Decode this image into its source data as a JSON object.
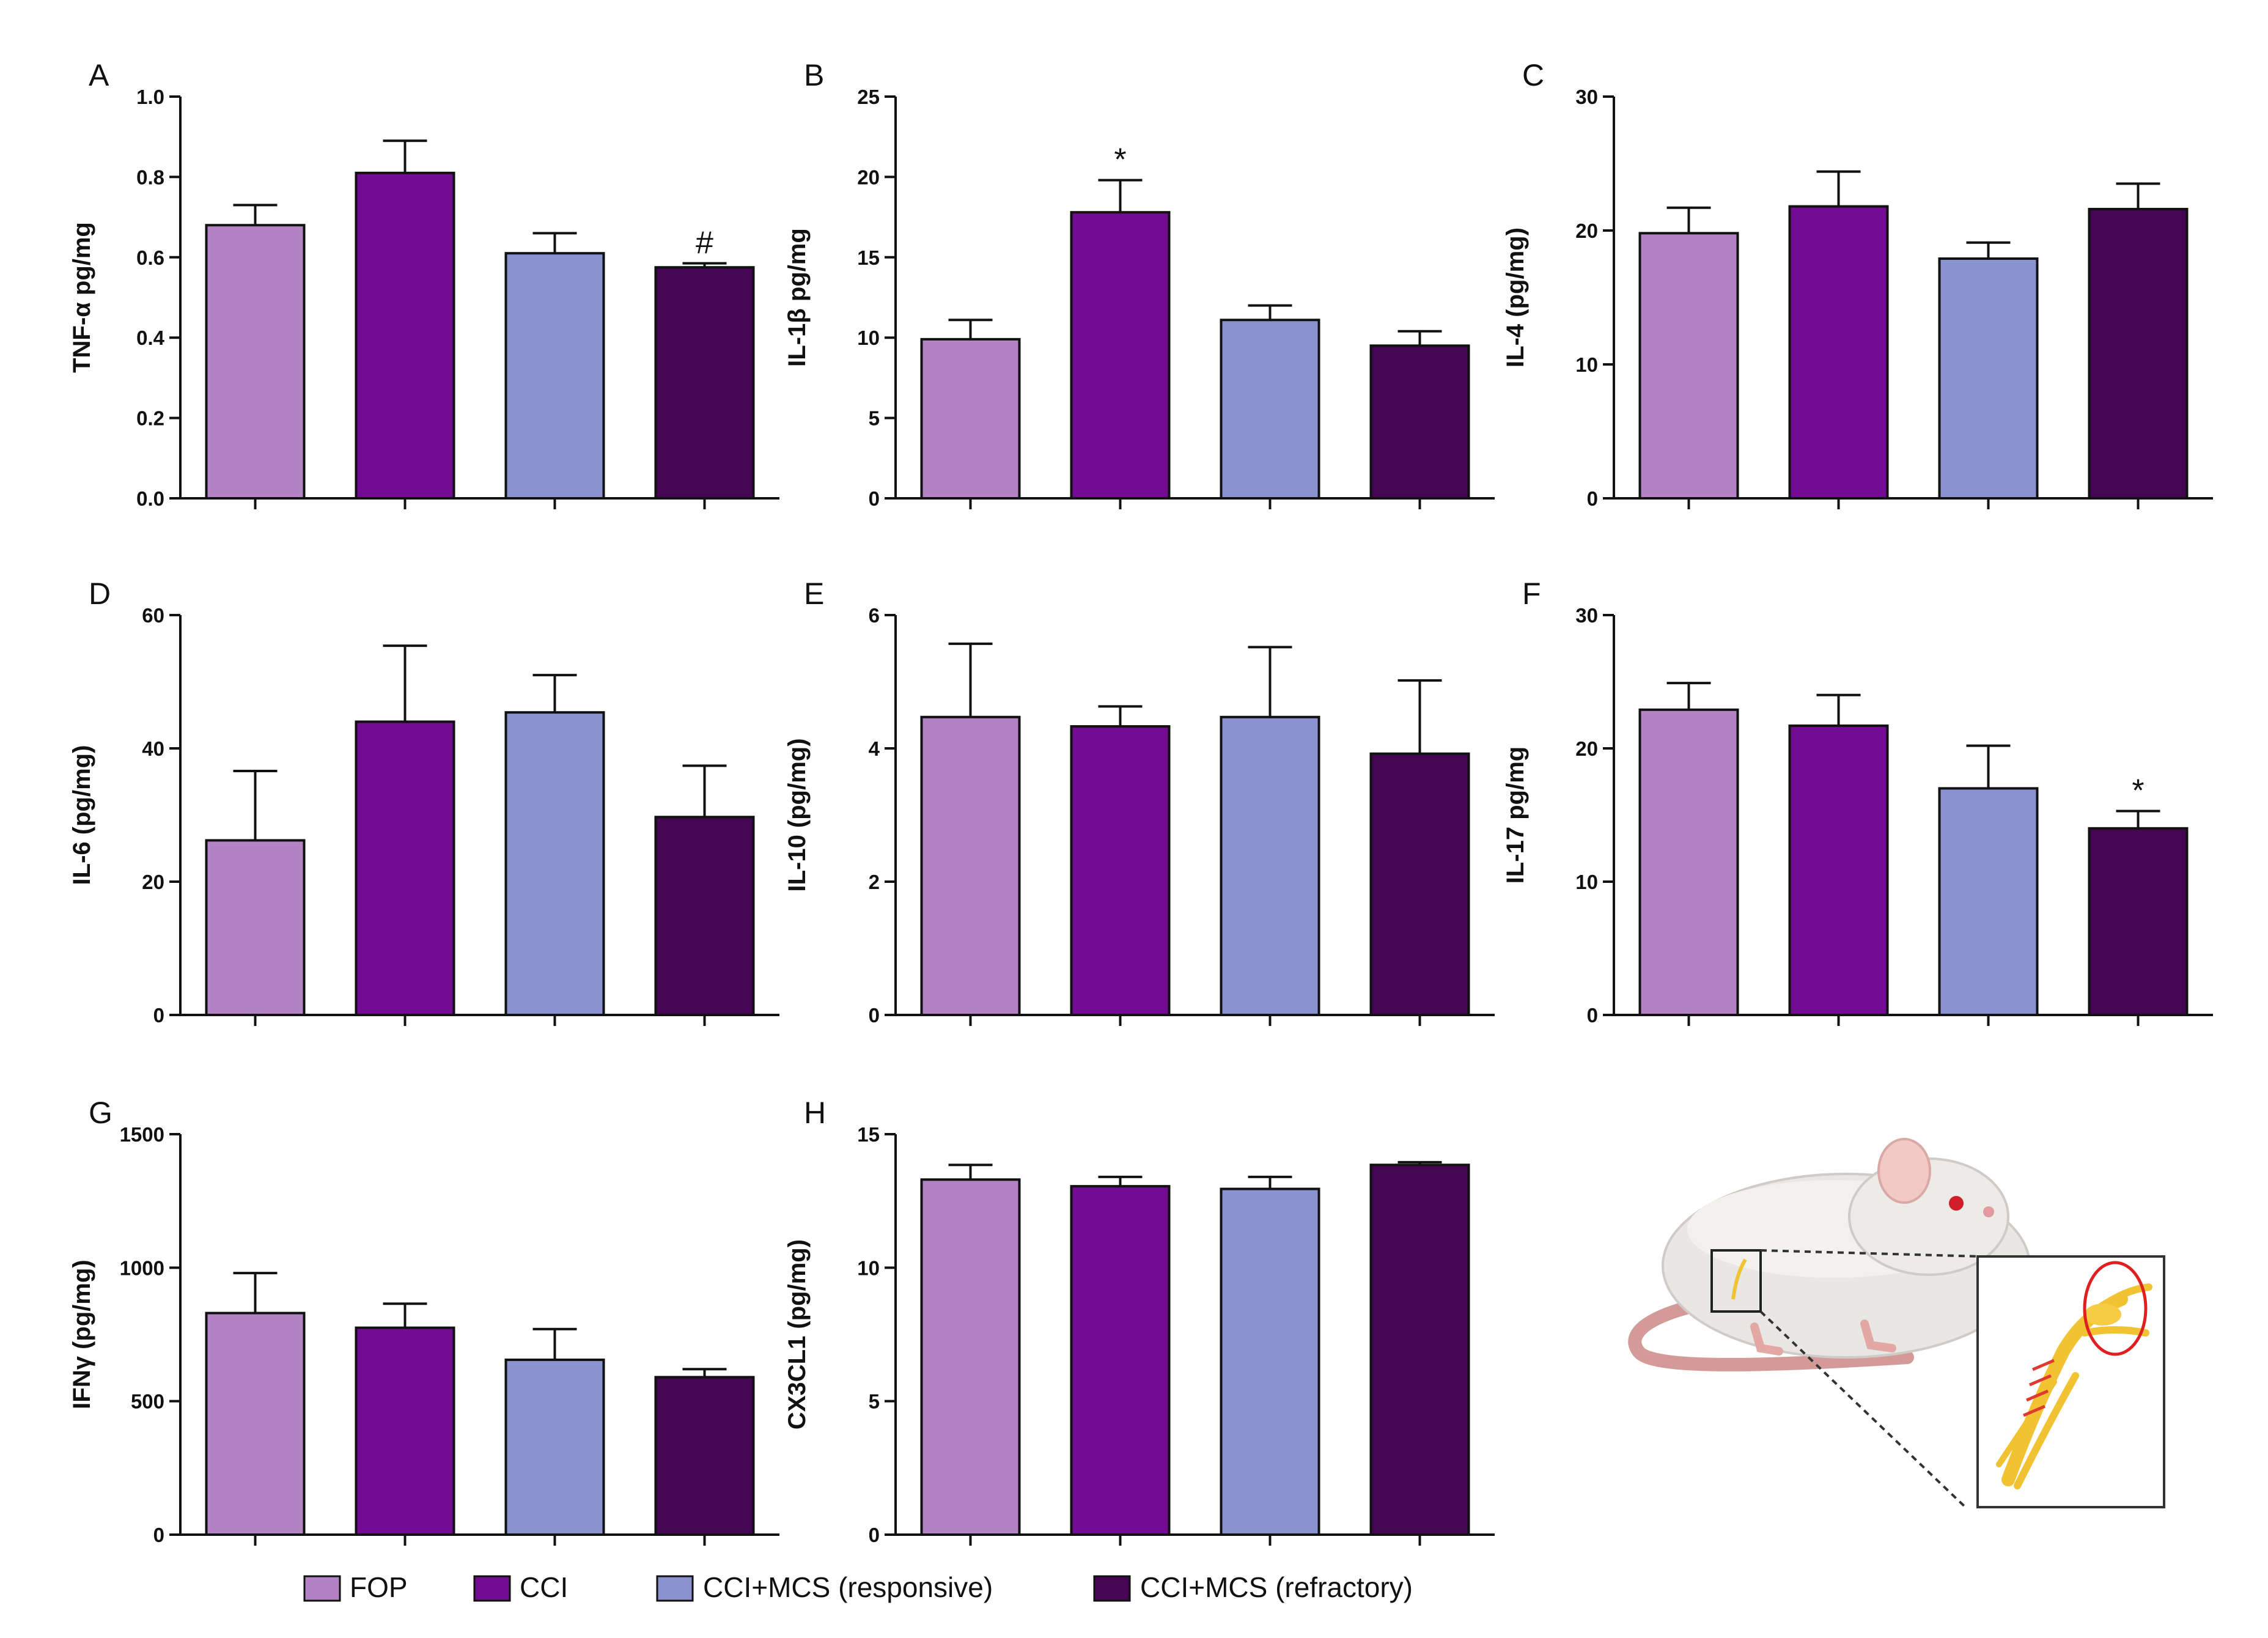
{
  "colors": {
    "FOP": "#b383c4",
    "CCI": "#740c93",
    "CCI+MCS (responsive)": "#8b92d0",
    "CCI+MCS (refractory)": "#440552"
  },
  "legend": [
    "FOP",
    "CCI",
    "CCI+MCS (responsive)",
    "CCI+MCS (refractory)"
  ],
  "chart_data": [
    {
      "panel": "A",
      "type": "bar",
      "ylabel": "TNF-α pg/mg",
      "ylim": [
        0,
        1.0
      ],
      "ticks": [
        "0.0",
        "0.2",
        "0.4",
        "0.6",
        "0.8",
        "1.0"
      ],
      "tick_values": [
        0,
        0.2,
        0.4,
        0.6,
        0.8,
        1.0
      ],
      "values": [
        0.68,
        0.81,
        0.61,
        0.575
      ],
      "errors": [
        0.05,
        0.08,
        0.05,
        0.01
      ],
      "annotations": [
        "",
        "",
        "",
        "#"
      ]
    },
    {
      "panel": "B",
      "type": "bar",
      "ylabel": "IL-1β pg/mg",
      "ylim": [
        0,
        25
      ],
      "ticks": [
        "0",
        "5",
        "10",
        "15",
        "20",
        "25"
      ],
      "tick_values": [
        0,
        5,
        10,
        15,
        20,
        25
      ],
      "values": [
        9.9,
        17.8,
        11.1,
        9.5
      ],
      "errors": [
        1.2,
        2.0,
        0.9,
        0.9
      ],
      "annotations": [
        "",
        "*",
        "",
        ""
      ]
    },
    {
      "panel": "C",
      "type": "bar",
      "ylabel": "IL-4 (pg/mg)",
      "ylim": [
        0,
        30
      ],
      "ticks": [
        "0",
        "10",
        "20",
        "30"
      ],
      "tick_values": [
        0,
        10,
        20,
        30
      ],
      "values": [
        19.8,
        21.8,
        17.9,
        21.6
      ],
      "errors": [
        1.9,
        2.6,
        1.2,
        1.9
      ],
      "annotations": [
        "",
        "",
        "",
        ""
      ]
    },
    {
      "panel": "D",
      "type": "bar",
      "ylabel": "IL-6 (pg/mg)",
      "ylim": [
        0,
        60
      ],
      "ticks": [
        "0",
        "20",
        "40",
        "60"
      ],
      "tick_values": [
        0,
        20,
        40,
        60
      ],
      "values": [
        26.2,
        44.0,
        45.4,
        29.7
      ],
      "errors": [
        10.4,
        11.4,
        5.6,
        7.7
      ],
      "annotations": [
        "",
        "",
        "",
        ""
      ]
    },
    {
      "panel": "E",
      "type": "bar",
      "ylabel": "IL-10 (pg/mg)",
      "ylim": [
        0,
        6
      ],
      "ticks": [
        "0",
        "2",
        "4",
        "6"
      ],
      "tick_values": [
        0,
        2,
        4,
        6
      ],
      "values": [
        4.47,
        4.33,
        4.47,
        3.92
      ],
      "errors": [
        1.1,
        0.3,
        1.05,
        1.1
      ],
      "annotations": [
        "",
        "",
        "",
        ""
      ]
    },
    {
      "panel": "F",
      "type": "bar",
      "ylabel": "IL-17 pg/mg",
      "ylim": [
        0,
        30
      ],
      "ticks": [
        "0",
        "10",
        "20",
        "30"
      ],
      "tick_values": [
        0,
        10,
        20,
        30
      ],
      "values": [
        22.9,
        21.7,
        17.0,
        14.0
      ],
      "errors": [
        2.0,
        2.3,
        3.2,
        1.3
      ],
      "annotations": [
        "",
        "",
        "",
        "*"
      ]
    },
    {
      "panel": "G",
      "type": "bar",
      "ylabel": "IFNγ (pg/mg)",
      "ylim": [
        0,
        1500
      ],
      "ticks": [
        "0",
        "500",
        "1000",
        "1500"
      ],
      "tick_values": [
        0,
        500,
        1000,
        1500
      ],
      "values": [
        830,
        775,
        655,
        590
      ],
      "errors": [
        150,
        90,
        115,
        30
      ],
      "annotations": [
        "",
        "",
        "",
        ""
      ]
    },
    {
      "panel": "H",
      "type": "bar",
      "ylabel": "CX3CL1 (pg/mg)",
      "ylim": [
        0,
        15
      ],
      "ticks": [
        "0",
        "5",
        "10",
        "15"
      ],
      "tick_values": [
        0,
        5,
        10,
        15
      ],
      "values": [
        13.3,
        13.05,
        12.95,
        13.85
      ],
      "errors": [
        0.55,
        0.35,
        0.45,
        0.1
      ],
      "annotations": [
        "",
        "",
        "",
        ""
      ]
    }
  ]
}
